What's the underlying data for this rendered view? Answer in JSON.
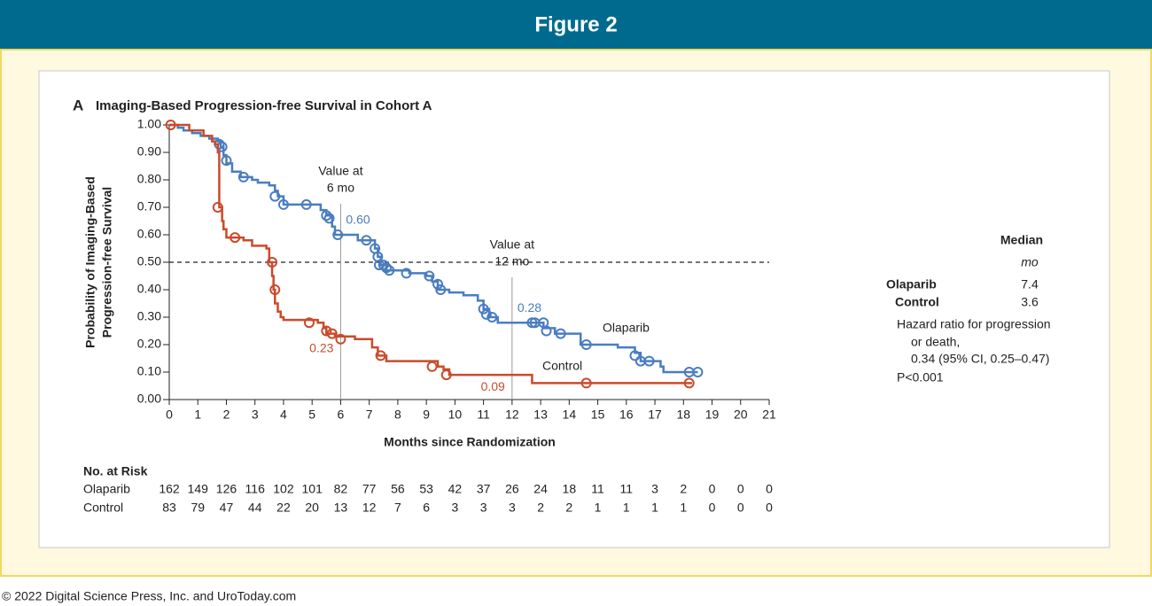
{
  "header": {
    "title": "Figure 2"
  },
  "footer": "© 2022 Digital Science Press, Inc. and UroToday.com",
  "chart_data": {
    "type": "step",
    "panel": "A",
    "title": "Imaging-Based Progression-free Survival in Cohort A",
    "y_label": [
      "Probability of Imaging-Based",
      "Progression-free Survival"
    ],
    "x_label": "Months since Randomization",
    "xlim": [
      0,
      21
    ],
    "ylim": [
      0,
      1
    ],
    "xticks": [
      0,
      1,
      2,
      3,
      4,
      5,
      6,
      7,
      8,
      9,
      10,
      11,
      12,
      13,
      14,
      15,
      16,
      17,
      18,
      19,
      20,
      21
    ],
    "yticks": [
      {
        "value": 0,
        "label": "0.00"
      },
      {
        "value": 0.1,
        "label": "0.10"
      },
      {
        "value": 0.2,
        "label": "0.20"
      },
      {
        "value": 0.3,
        "label": "0.30"
      },
      {
        "value": 0.4,
        "label": "0.40"
      },
      {
        "value": 0.5,
        "label": "0.50"
      },
      {
        "value": 0.6,
        "label": "0.60"
      },
      {
        "value": 0.7,
        "label": "0.70"
      },
      {
        "value": 0.8,
        "label": "0.80"
      },
      {
        "value": 0.9,
        "label": "0.90"
      },
      {
        "value": 1,
        "label": "1.00"
      }
    ],
    "median_line": 0.5,
    "series": [
      {
        "name": "Olaparib",
        "color": "#4a7dc0",
        "x": [
          0,
          0.3,
          0.5,
          0.8,
          1.1,
          1.4,
          1.7,
          1.8,
          1.9,
          2.0,
          2.2,
          2.5,
          2.9,
          3.1,
          3.5,
          3.7,
          3.8,
          4.0,
          5.3,
          5.5,
          5.7,
          5.8,
          6.6,
          7.2,
          7.3,
          7.4,
          7.6,
          8.4,
          9.0,
          9.2,
          9.4,
          9.8,
          10.3,
          10.8,
          11.0,
          11.2,
          11.5,
          13.1,
          13.5,
          14.4,
          15.7,
          16.3,
          16.5,
          17.2,
          17.3,
          18.5
        ],
        "values": [
          1.0,
          0.99,
          0.98,
          0.97,
          0.96,
          0.95,
          0.94,
          0.92,
          0.89,
          0.86,
          0.83,
          0.81,
          0.8,
          0.79,
          0.78,
          0.76,
          0.74,
          0.71,
          0.69,
          0.67,
          0.63,
          0.6,
          0.58,
          0.55,
          0.52,
          0.49,
          0.47,
          0.46,
          0.45,
          0.43,
          0.4,
          0.39,
          0.38,
          0.36,
          0.33,
          0.3,
          0.28,
          0.26,
          0.24,
          0.2,
          0.19,
          0.17,
          0.14,
          0.12,
          0.1,
          0.1
        ],
        "censor_x": [
          1.75,
          1.85,
          2.0,
          2.6,
          3.7,
          4.0,
          4.8,
          5.5,
          5.6,
          5.9,
          6.9,
          7.2,
          7.3,
          7.35,
          7.5,
          7.6,
          7.7,
          8.3,
          9.1,
          9.4,
          9.5,
          11.0,
          11.1,
          11.3,
          12.7,
          12.8,
          13.1,
          13.2,
          13.7,
          14.6,
          16.3,
          16.5,
          16.8,
          18.2,
          18.5
        ],
        "censor_y": [
          0.93,
          0.92,
          0.87,
          0.81,
          0.74,
          0.71,
          0.71,
          0.67,
          0.66,
          0.6,
          0.58,
          0.55,
          0.52,
          0.49,
          0.49,
          0.48,
          0.47,
          0.46,
          0.45,
          0.42,
          0.4,
          0.33,
          0.31,
          0.3,
          0.28,
          0.28,
          0.28,
          0.25,
          0.24,
          0.2,
          0.16,
          0.14,
          0.14,
          0.1,
          0.1
        ],
        "at_risk": [
          162,
          149,
          126,
          116,
          102,
          101,
          82,
          77,
          56,
          53,
          42,
          37,
          26,
          24,
          18,
          11,
          11,
          3,
          2,
          0,
          0,
          0
        ]
      },
      {
        "name": "Control",
        "color": "#c94b2c",
        "x": [
          0,
          0.7,
          1.2,
          1.5,
          1.6,
          1.7,
          1.75,
          1.85,
          1.9,
          2.0,
          2.6,
          2.9,
          3.4,
          3.5,
          3.6,
          3.65,
          3.7,
          3.8,
          3.9,
          4.0,
          5.2,
          5.4,
          5.5,
          5.8,
          6.5,
          7.1,
          7.3,
          7.6,
          9.4,
          9.6,
          9.8,
          12.7,
          18.3
        ],
        "values": [
          1.0,
          0.98,
          0.96,
          0.94,
          0.93,
          0.9,
          0.7,
          0.65,
          0.62,
          0.59,
          0.58,
          0.56,
          0.55,
          0.5,
          0.45,
          0.4,
          0.35,
          0.32,
          0.3,
          0.29,
          0.28,
          0.26,
          0.24,
          0.23,
          0.22,
          0.19,
          0.16,
          0.14,
          0.12,
          0.11,
          0.09,
          0.06,
          0.06
        ],
        "censor_x": [
          0.05,
          1.7,
          2.3,
          3.6,
          3.7,
          4.9,
          5.5,
          5.7,
          6.0,
          7.4,
          9.2,
          9.7,
          14.6,
          18.2
        ],
        "censor_y": [
          1.0,
          0.7,
          0.59,
          0.5,
          0.4,
          0.28,
          0.25,
          0.24,
          0.22,
          0.16,
          0.12,
          0.09,
          0.06,
          0.06
        ],
        "at_risk": [
          83,
          79,
          47,
          44,
          22,
          20,
          13,
          12,
          7,
          6,
          3,
          3,
          3,
          2,
          2,
          1,
          1,
          1,
          1,
          0,
          0,
          0
        ]
      }
    ],
    "reference_lines": [
      {
        "x": 6,
        "label": [
          "Value at",
          "6 mo"
        ],
        "values": [
          0.6,
          0.23
        ],
        "value_labels": [
          "0.60",
          "0.23"
        ]
      },
      {
        "x": 12,
        "label": [
          "Value at",
          "12 mo"
        ],
        "values": [
          0.28,
          0.09
        ],
        "value_labels": [
          "0.28",
          "0.09"
        ]
      }
    ],
    "at_risk_title": "No. at Risk",
    "summary": {
      "header": "Median",
      "unit": "mo",
      "rows": [
        {
          "name": "Olaparib",
          "value": 7.4
        },
        {
          "name": "Control",
          "value": 3.6
        }
      ],
      "hazard": [
        "Hazard ratio for progression",
        "or death,",
        "0.34 (95% CI, 0.25–0.47)"
      ],
      "p": "P<0.001"
    }
  }
}
